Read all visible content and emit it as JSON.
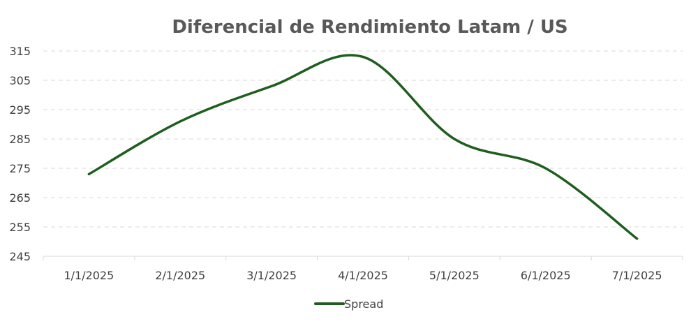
{
  "chart_data": {
    "type": "line",
    "title": "Diferencial de Rendimiento Latam / US",
    "xlabel": "",
    "ylabel": "",
    "categories": [
      "1/1/2025",
      "2/1/2025",
      "3/1/2025",
      "4/1/2025",
      "5/1/2025",
      "6/1/2025",
      "7/1/2025"
    ],
    "series": [
      {
        "name": "Spread",
        "values": [
          273,
          291,
          303,
          313,
          285,
          275,
          251
        ],
        "color": "#1e5e1e"
      }
    ],
    "ylim": [
      245,
      315
    ],
    "yticks": [
      245,
      255,
      265,
      275,
      285,
      295,
      305,
      315
    ],
    "grid": true,
    "smooth": true,
    "legend_position": "bottom"
  }
}
